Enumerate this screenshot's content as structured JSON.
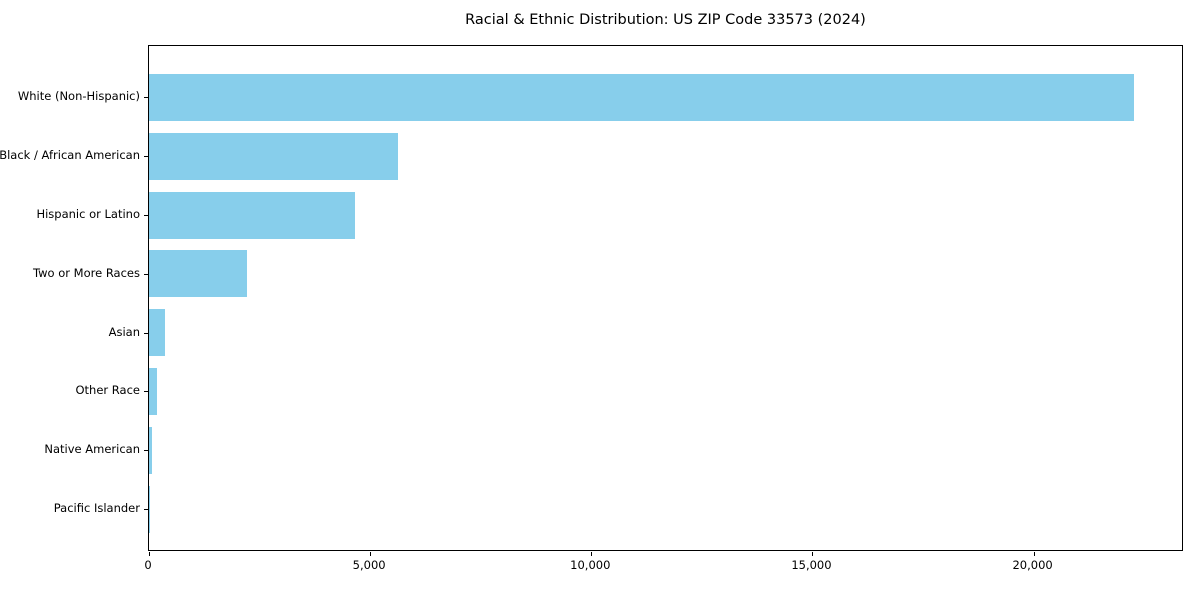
{
  "figure": {
    "background": "#ffffff",
    "text_color": "#000000",
    "spine_color": "#000000"
  },
  "chart_data": {
    "type": "bar",
    "orientation": "horizontal",
    "title": "Racial & Ethnic Distribution: US ZIP Code 33573 (2024)",
    "categories": [
      "White (Non-Hispanic)",
      "Black / African American",
      "Hispanic or Latino",
      "Two or More Races",
      "Asian",
      "Other Race",
      "Native American",
      "Pacific Islander"
    ],
    "values": [
      22280,
      5630,
      4660,
      2220,
      360,
      180,
      70,
      15
    ],
    "xlabel": "",
    "ylabel": "",
    "xlim": [
      0,
      23400
    ],
    "x_ticks": [
      0,
      5000,
      10000,
      15000,
      20000
    ],
    "x_tick_labels": [
      "0",
      "5,000",
      "10,000",
      "15,000",
      "20,000"
    ],
    "bar_color": "#87ceeb",
    "grid": false,
    "legend": false
  }
}
